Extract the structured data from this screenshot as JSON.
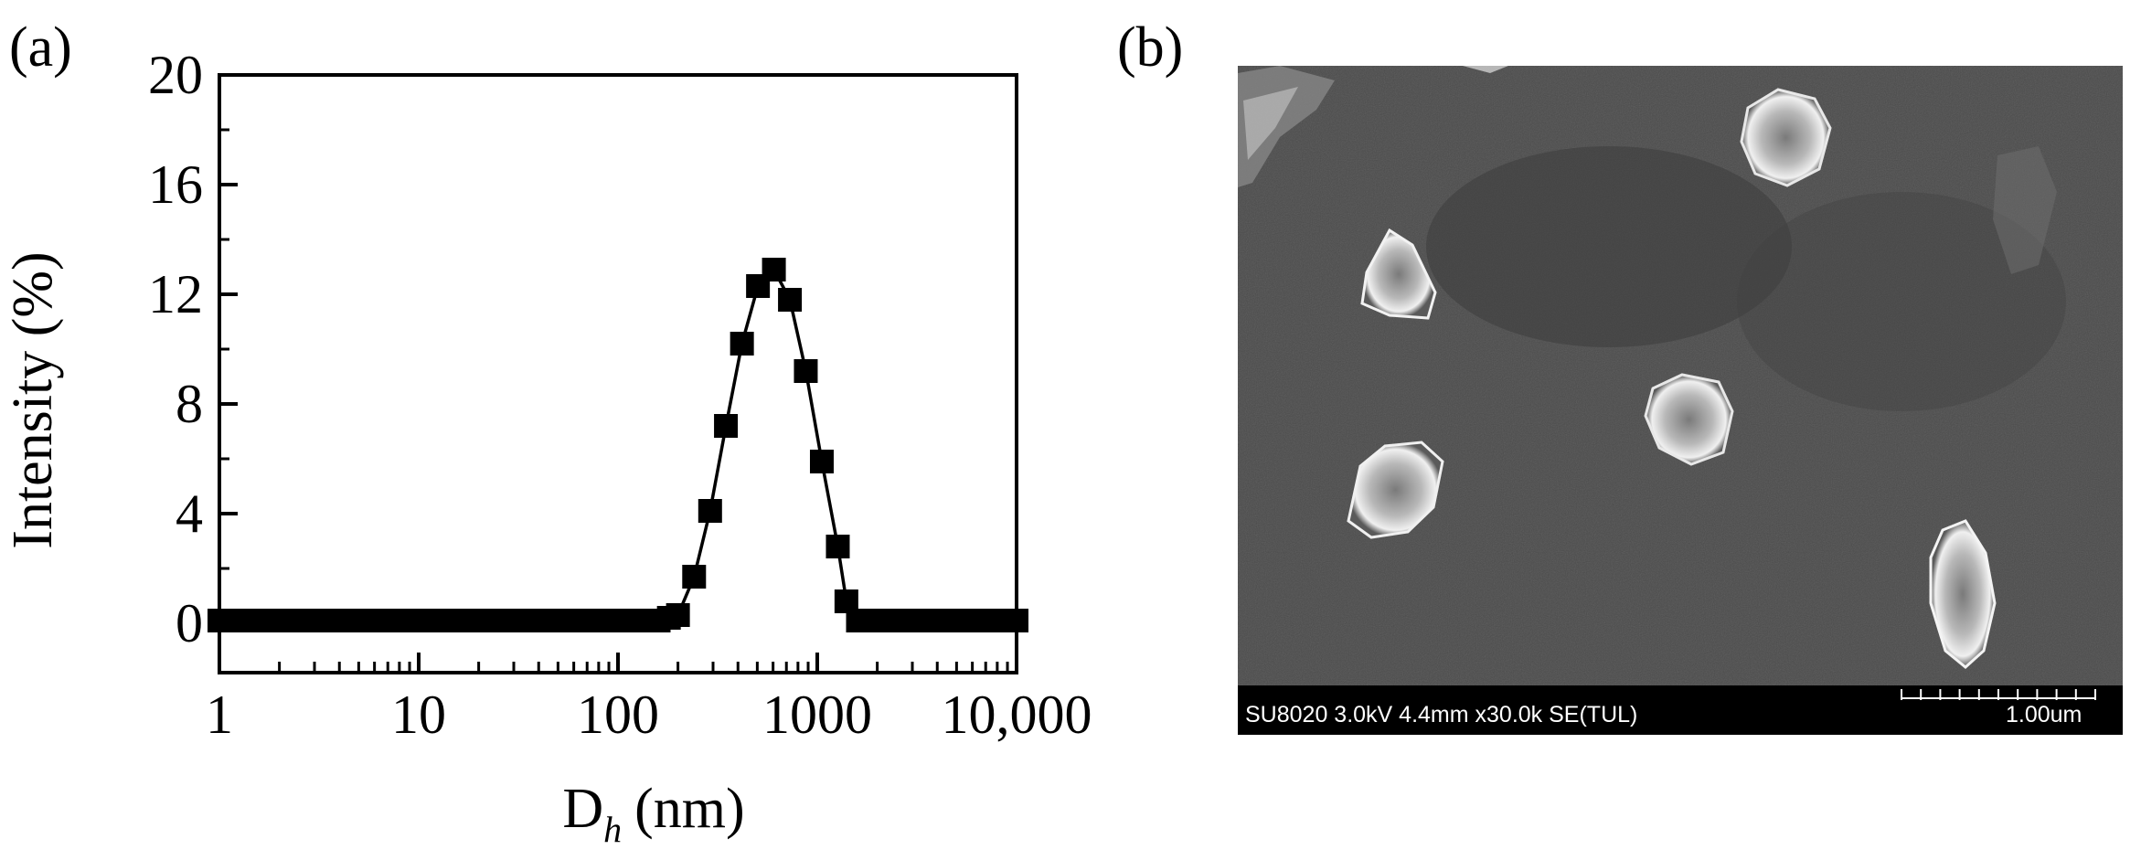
{
  "panels": {
    "a": {
      "label": "(a)"
    },
    "b": {
      "label": "(b)"
    }
  },
  "chart_data": {
    "type": "scatter",
    "x_scale": "log",
    "xlim": [
      1,
      10000
    ],
    "ylim": [
      -1.8,
      20
    ],
    "xlabel": "D",
    "xlabel_sub": "h",
    "xlabel_unit": "(nm)",
    "ylabel": "Intensity (%)",
    "x_ticks": [
      {
        "value": 1,
        "label": "1"
      },
      {
        "value": 10,
        "label": "10"
      },
      {
        "value": 100,
        "label": "100"
      },
      {
        "value": 1000,
        "label": "1000"
      },
      {
        "value": 10000,
        "label": "10,000"
      }
    ],
    "y_ticks": [
      {
        "value": 0,
        "label": "0"
      },
      {
        "value": 4,
        "label": "4"
      },
      {
        "value": 8,
        "label": "8"
      },
      {
        "value": 12,
        "label": "12"
      },
      {
        "value": 16,
        "label": "16"
      },
      {
        "value": 20,
        "label": "20"
      }
    ],
    "grid": false,
    "legend": "none",
    "marker": "filled-square",
    "line": "connected",
    "series": [
      {
        "x": [
          1,
          1.1,
          1.2,
          1.3,
          1.4,
          1.5,
          1.6,
          1.8,
          2,
          2.2,
          2.4,
          2.7,
          3,
          3.3,
          3.6,
          4,
          4.5,
          5,
          5.5,
          6,
          6.8,
          7.5,
          8.2,
          9,
          10,
          11,
          12,
          13,
          15,
          16,
          18,
          20,
          22,
          24,
          27,
          30,
          33,
          36,
          40,
          45,
          50,
          55,
          60,
          68,
          75,
          82,
          90,
          100,
          110,
          120,
          130,
          150,
          160,
          180,
          200,
          241,
          290,
          348,
          419,
          504,
          606,
          729,
          876,
          1054,
          1268,
          1400,
          1600,
          1800,
          2000,
          2200,
          2400,
          2700,
          3000,
          3300,
          3600,
          4000,
          4500,
          5000,
          5500,
          6000,
          6800,
          7500,
          8200,
          9000,
          10000
        ],
        "y": [
          0.1,
          0.1,
          0.1,
          0.1,
          0.1,
          0.1,
          0.1,
          0.1,
          0.1,
          0.1,
          0.1,
          0.1,
          0.1,
          0.1,
          0.1,
          0.1,
          0.1,
          0.1,
          0.1,
          0.1,
          0.1,
          0.1,
          0.1,
          0.1,
          0.1,
          0.1,
          0.1,
          0.1,
          0.1,
          0.1,
          0.1,
          0.1,
          0.1,
          0.1,
          0.1,
          0.1,
          0.1,
          0.1,
          0.1,
          0.1,
          0.1,
          0.1,
          0.1,
          0.1,
          0.1,
          0.1,
          0.1,
          0.1,
          0.1,
          0.1,
          0.1,
          0.1,
          0.1,
          0.2,
          0.3,
          1.7,
          4.1,
          7.2,
          10.2,
          12.3,
          12.9,
          11.8,
          9.2,
          5.9,
          2.8,
          0.8,
          0.1,
          0.1,
          0.1,
          0.1,
          0.1,
          0.1,
          0.1,
          0.1,
          0.1,
          0.1,
          0.1,
          0.1,
          0.1,
          0.1,
          0.1,
          0.1,
          0.1,
          0.1,
          0.1
        ]
      }
    ]
  },
  "sem": {
    "info_text": "SU8020 3.0kV 4.4mm x30.0k SE(TUL)",
    "scale_label": "1.00um",
    "background_color": "#4b4b4b",
    "bar_color": "#000000"
  }
}
